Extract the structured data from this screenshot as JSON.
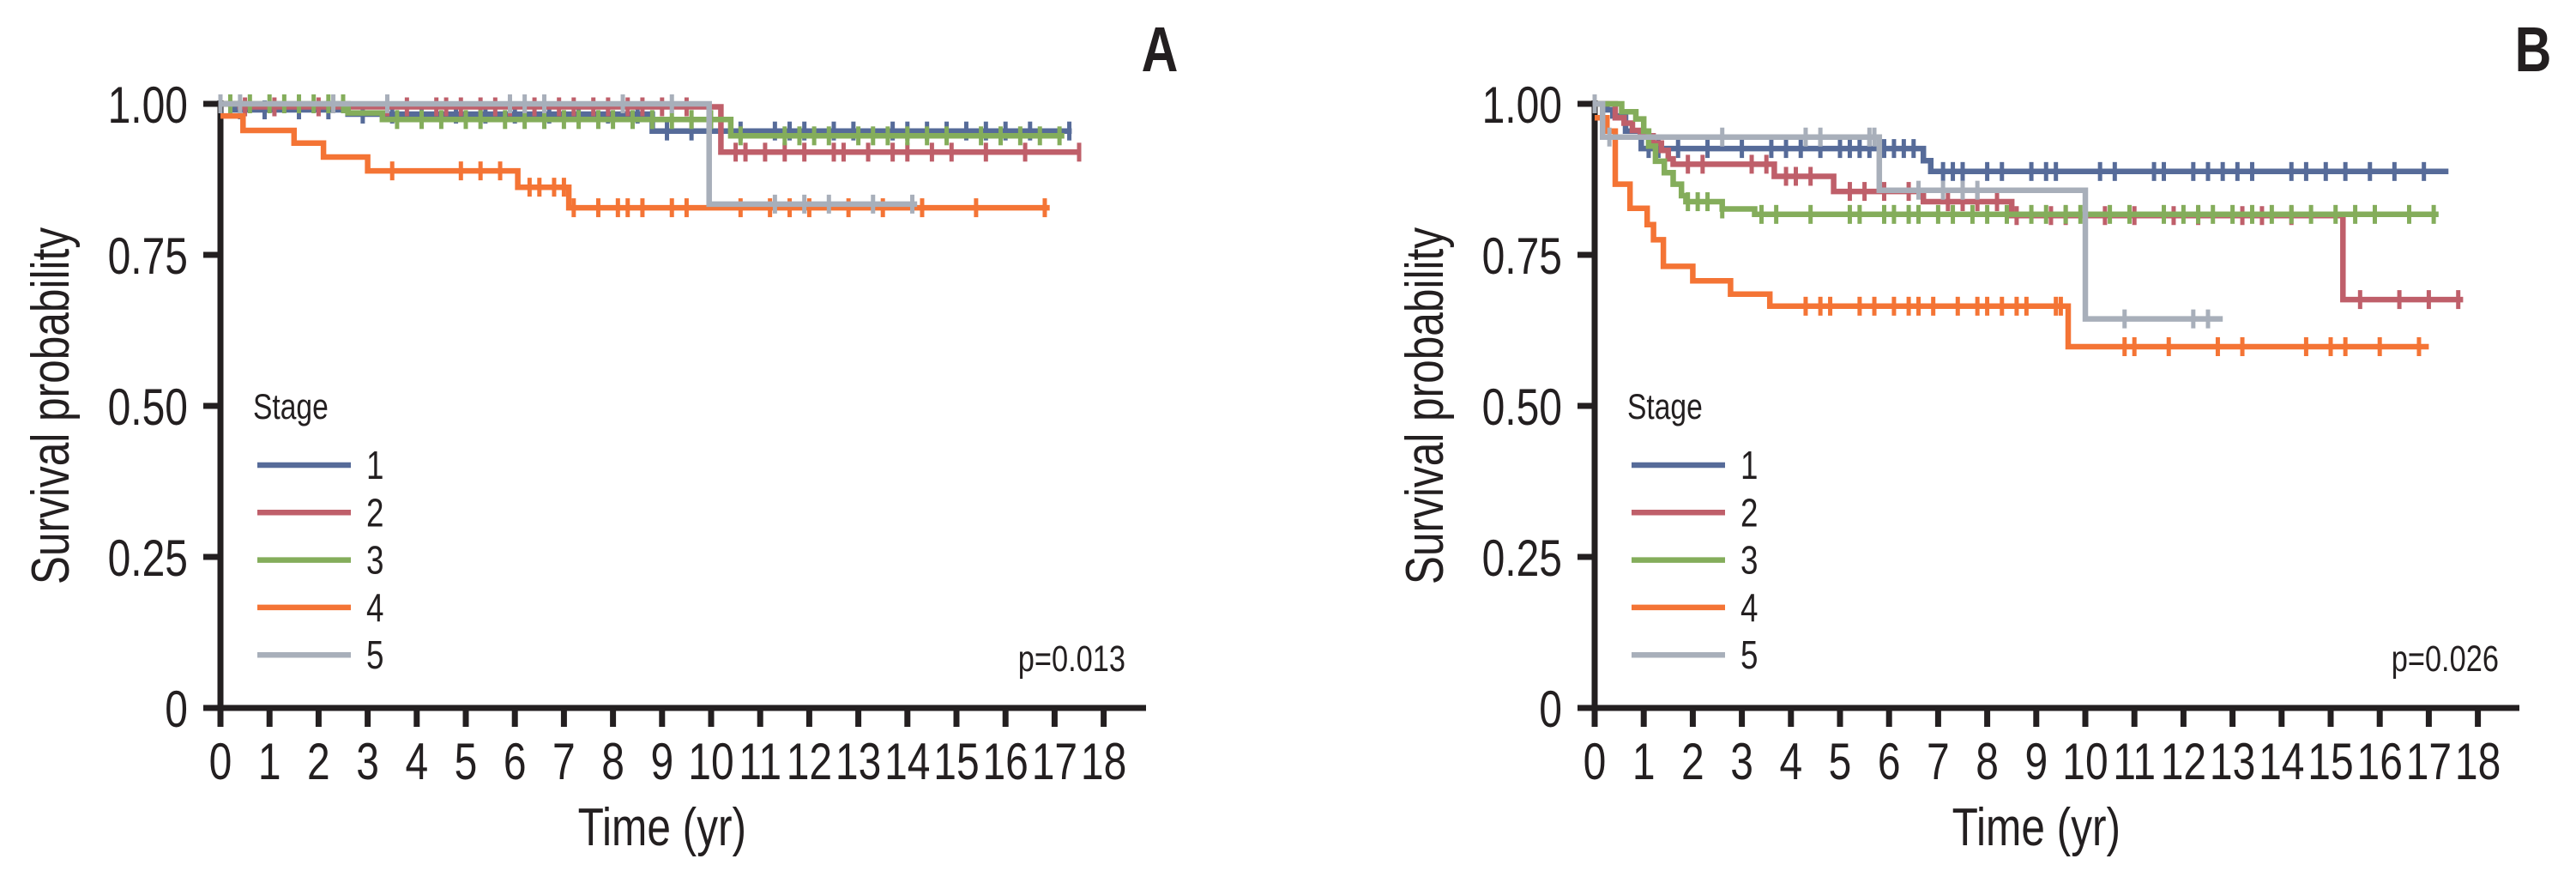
{
  "figure": {
    "panels": [
      "A",
      "B"
    ]
  },
  "colors": {
    "stage_1": "#566b99",
    "stage_2": "#bf5f6a",
    "stage_3": "#84ad5b",
    "stage_4": "#f47435",
    "stage_5": "#a8afba",
    "axis": "#231f20"
  },
  "chart_data": [
    {
      "type": "line",
      "subtype": "kaplan-meier step",
      "panel_label": "A",
      "title": "",
      "xlabel": "Time (yr)",
      "ylabel": "Survival probability",
      "xlim": [
        0,
        18
      ],
      "ylim": [
        0,
        1
      ],
      "x_ticks": [
        0,
        1,
        2,
        3,
        4,
        5,
        6,
        7,
        8,
        9,
        10,
        11,
        12,
        13,
        14,
        15,
        16,
        17,
        18
      ],
      "x_tick_labels": [
        "0",
        "1",
        "2",
        "3",
        "4",
        "5",
        "6",
        "7",
        "8",
        "9",
        "10",
        "11",
        "12",
        "13",
        "14",
        "15",
        "16",
        "17",
        "18"
      ],
      "y_ticks": [
        0,
        0.25,
        0.5,
        0.75,
        1.0
      ],
      "y_tick_labels": [
        "0",
        "0.25",
        "0.50",
        "0.75",
        "1.00"
      ],
      "grid": false,
      "legend": {
        "title": "Stage",
        "position": "lower-left",
        "entries": [
          "1",
          "2",
          "3",
          "4",
          "5"
        ]
      },
      "annotation": "p=0.013",
      "annotation_position": "bottom-right",
      "series": [
        {
          "name": "1",
          "color_key": "stage_1",
          "steps": [
            [
              0,
              1.0
            ],
            [
              0.3,
              0.99
            ],
            [
              2.6,
              0.983
            ],
            [
              8.8,
              0.955
            ]
          ],
          "end": 17.35,
          "censor": [
            0.4,
            0.9,
            1.6,
            2.2,
            2.9,
            3.5,
            4.1,
            4.8,
            5.4,
            6.0,
            6.7,
            7.3,
            7.9,
            8.5,
            9.1,
            9.6,
            10.6,
            11.3,
            11.6,
            11.9,
            12.5,
            12.9,
            13.7,
            14.0,
            14.4,
            14.8,
            15.2,
            15.6,
            16.0,
            16.5,
            17.3
          ]
        },
        {
          "name": "2",
          "color_key": "stage_2",
          "steps": [
            [
              0,
              1.0
            ],
            [
              0.4,
              0.995
            ],
            [
              10.2,
              0.92
            ]
          ],
          "end": 17.5,
          "censor": [
            0.5,
            1.1,
            2.0,
            3.4,
            3.8,
            4.4,
            4.6,
            4.9,
            5.3,
            5.6,
            5.9,
            6.4,
            6.9,
            7.2,
            7.6,
            7.9,
            8.3,
            8.6,
            9.0,
            9.5,
            10.5,
            10.7,
            11.1,
            11.5,
            11.9,
            12.5,
            12.7,
            13.2,
            13.7,
            14.0,
            14.5,
            14.9,
            15.6,
            16.4,
            17.5
          ]
        },
        {
          "name": "3",
          "color_key": "stage_3",
          "steps": [
            [
              0,
              1.0
            ],
            [
              2.6,
              0.985
            ],
            [
              3.3,
              0.974
            ],
            [
              10.4,
              0.947
            ]
          ],
          "end": 17.2,
          "censor": [
            0.2,
            0.6,
            1.0,
            1.3,
            1.6,
            1.9,
            2.2,
            2.5,
            3.6,
            4.1,
            4.5,
            5.0,
            5.3,
            5.8,
            6.2,
            6.6,
            7.0,
            7.3,
            7.7,
            8.0,
            8.4,
            8.8,
            9.2,
            9.6,
            10.0,
            10.6,
            11.5,
            11.8,
            12.1,
            12.4,
            13.0,
            13.3,
            13.6,
            14.0,
            14.4,
            14.8,
            15.5,
            15.9,
            16.3,
            16.7,
            17.1
          ]
        },
        {
          "name": "4",
          "color_key": "stage_4",
          "steps": [
            [
              0,
              0.98
            ],
            [
              0.46,
              0.956
            ],
            [
              1.5,
              0.935
            ],
            [
              2.1,
              0.912
            ],
            [
              3.0,
              0.889
            ],
            [
              6.06,
              0.862
            ],
            [
              7.1,
              0.828
            ]
          ],
          "end": 16.9,
          "censor": [
            3.5,
            4.9,
            5.3,
            5.7,
            7.0,
            6.3,
            6.5,
            6.8,
            7.2,
            7.7,
            8.1,
            8.3,
            8.6,
            9.2,
            9.5,
            10.6,
            11.2,
            11.6,
            12.0,
            12.8,
            13.5,
            14.3,
            15.4,
            16.8
          ]
        },
        {
          "name": "5",
          "color_key": "stage_5",
          "steps": [
            [
              0,
              1.0
            ],
            [
              9.96,
              0.834
            ]
          ],
          "end": 14.2,
          "censor": [
            0.0,
            0.4,
            2.3,
            3.4,
            5.9,
            6.2,
            6.6,
            8.2,
            9.2,
            11.3,
            11.9,
            12.4,
            13.3,
            14.1
          ]
        }
      ]
    },
    {
      "type": "line",
      "subtype": "kaplan-meier step",
      "panel_label": "B",
      "title": "",
      "xlabel": "Time (yr)",
      "ylabel": "Survival probability",
      "xlim": [
        0,
        18
      ],
      "ylim": [
        0,
        1
      ],
      "x_ticks": [
        0,
        1,
        2,
        3,
        4,
        5,
        6,
        7,
        8,
        9,
        10,
        11,
        12,
        13,
        14,
        15,
        16,
        17,
        18
      ],
      "x_tick_labels": [
        "0",
        "1",
        "2",
        "3",
        "4",
        "5",
        "6",
        "7",
        "8",
        "9",
        "10",
        "11",
        "12",
        "13",
        "14",
        "15",
        "16",
        "17",
        "18"
      ],
      "y_ticks": [
        0,
        0.25,
        0.5,
        0.75,
        1.0
      ],
      "y_tick_labels": [
        "0",
        "0.25",
        "0.50",
        "0.75",
        "1.00"
      ],
      "grid": false,
      "legend": {
        "title": "Stage",
        "position": "lower-left",
        "entries": [
          "1",
          "2",
          "3",
          "4",
          "5"
        ]
      },
      "annotation": "p=0.026",
      "annotation_position": "bottom-right",
      "series": [
        {
          "name": "1",
          "color_key": "stage_1",
          "steps": [
            [
              0,
              1.0
            ],
            [
              0.25,
              0.99
            ],
            [
              0.37,
              0.98
            ],
            [
              0.63,
              0.955
            ],
            [
              0.95,
              0.926
            ],
            [
              6.7,
              0.906
            ],
            [
              6.85,
              0.888
            ]
          ],
          "end": 17.4,
          "censor": [
            1.1,
            1.3,
            1.7,
            2.3,
            3.0,
            3.6,
            3.9,
            4.2,
            4.6,
            5.0,
            5.2,
            5.4,
            5.6,
            5.9,
            6.1,
            6.3,
            6.5,
            7.1,
            7.3,
            7.5,
            8.0,
            8.3,
            8.9,
            9.2,
            9.4,
            10.3,
            10.6,
            11.4,
            11.6,
            12.2,
            12.5,
            12.8,
            13.1,
            13.4,
            14.2,
            14.5,
            14.9,
            15.3,
            15.8,
            16.3,
            16.9
          ]
        },
        {
          "name": "2",
          "color_key": "stage_2",
          "steps": [
            [
              0,
              1.0
            ],
            [
              0.42,
              0.977
            ],
            [
              0.6,
              0.968
            ],
            [
              0.77,
              0.956
            ],
            [
              0.93,
              0.947
            ],
            [
              1.19,
              0.935
            ],
            [
              1.36,
              0.923
            ],
            [
              1.5,
              0.909
            ],
            [
              1.6,
              0.9
            ],
            [
              3.66,
              0.88
            ],
            [
              4.87,
              0.855
            ],
            [
              6.7,
              0.838
            ],
            [
              8.5,
              0.815
            ],
            [
              15.25,
              0.676
            ]
          ],
          "end": 17.7,
          "censor": [
            1.9,
            2.2,
            3.2,
            3.5,
            3.9,
            4.1,
            4.4,
            5.2,
            5.5,
            5.9,
            6.4,
            7.2,
            7.5,
            7.8,
            8.2,
            8.6,
            9.3,
            9.6,
            10.4,
            11.0,
            11.8,
            12.3,
            13.2,
            13.6,
            14.2,
            15.6,
            16.4,
            17.0,
            17.6
          ]
        },
        {
          "name": "3",
          "color_key": "stage_3",
          "steps": [
            [
              0,
              1.0
            ],
            [
              0.55,
              0.987
            ],
            [
              0.84,
              0.975
            ],
            [
              1.0,
              0.955
            ],
            [
              1.1,
              0.93
            ],
            [
              1.24,
              0.905
            ],
            [
              1.42,
              0.886
            ],
            [
              1.6,
              0.867
            ],
            [
              1.77,
              0.848
            ],
            [
              1.86,
              0.838
            ],
            [
              2.6,
              0.826
            ],
            [
              3.26,
              0.817
            ]
          ],
          "end": 17.2,
          "censor": [
            1.9,
            2.1,
            2.3,
            2.6,
            3.4,
            3.7,
            4.4,
            5.2,
            5.4,
            5.9,
            6.1,
            6.4,
            6.6,
            7.0,
            7.3,
            7.7,
            8.0,
            8.4,
            8.9,
            9.2,
            9.6,
            9.9,
            10.5,
            10.9,
            11.6,
            12.0,
            12.3,
            12.6,
            13.0,
            13.4,
            13.8,
            14.2,
            14.6,
            15.1,
            15.5,
            15.9,
            16.6,
            17.1
          ]
        },
        {
          "name": "4",
          "color_key": "stage_4",
          "steps": [
            [
              0,
              0.977
            ],
            [
              0.25,
              0.955
            ],
            [
              0.42,
              0.867
            ],
            [
              0.72,
              0.827
            ],
            [
              1.07,
              0.8
            ],
            [
              1.2,
              0.775
            ],
            [
              1.4,
              0.731
            ],
            [
              2.0,
              0.707
            ],
            [
              2.77,
              0.685
            ],
            [
              3.57,
              0.665
            ],
            [
              9.65,
              0.598
            ]
          ],
          "end": 17.0,
          "censor": [
            4.3,
            4.6,
            4.8,
            5.4,
            5.7,
            6.1,
            6.4,
            6.6,
            6.9,
            7.4,
            7.8,
            8.0,
            8.3,
            8.6,
            8.8,
            9.4,
            9.5,
            10.8,
            11.0,
            11.7,
            12.7,
            13.2,
            14.5,
            15.0,
            15.3,
            16.0,
            16.8
          ]
        },
        {
          "name": "5",
          "color_key": "stage_5",
          "steps": [
            [
              0,
              1.0
            ],
            [
              0.16,
              0.945
            ],
            [
              5.8,
              0.857
            ],
            [
              10.0,
              0.644
            ]
          ],
          "end": 12.8,
          "censor": [
            0.0,
            0.3,
            2.6,
            4.3,
            4.6,
            5.6,
            5.7,
            6.6,
            7.1,
            7.5,
            7.8,
            10.8,
            12.2,
            12.5
          ]
        }
      ]
    }
  ]
}
